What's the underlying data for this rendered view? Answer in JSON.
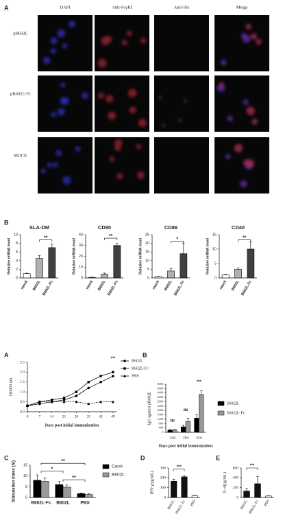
{
  "figure_a": {
    "columns": [
      "DAPI",
      "Anti-FcγRI",
      "Anti-His",
      "Merge"
    ],
    "rows": [
      "pB602L",
      "pB602L-Fc",
      "MOCK"
    ]
  },
  "panel_labels": [
    "A",
    "B",
    "A",
    "B",
    "C",
    "D",
    "E"
  ],
  "chart_data": [
    {
      "type": "bar",
      "title": "SLA-DM",
      "y_label": "Relative mRNA level",
      "categories": [
        "mock",
        "B602L",
        "B602L-Fc"
      ],
      "values": [
        1,
        4.5,
        7
      ],
      "errors": [
        0.1,
        0.7,
        0.8
      ],
      "colors": [
        "#ffffff",
        "#b0b0b0",
        "#404040"
      ],
      "ylim": [
        0,
        10
      ],
      "yticks": [
        0,
        2,
        4,
        6,
        8,
        10
      ],
      "annotations": [
        "**"
      ]
    },
    {
      "type": "bar",
      "title": "CD80",
      "y_label": "Relative mRNA level",
      "categories": [
        "mock",
        "B602L",
        "B602L-Fc"
      ],
      "values": [
        0.5,
        3.5,
        30
      ],
      "errors": [
        0.3,
        1,
        2
      ],
      "colors": [
        "#ffffff",
        "#b0b0b0",
        "#404040"
      ],
      "ylim": [
        0,
        40
      ],
      "yticks": [
        0,
        10,
        20,
        30,
        40
      ],
      "annotations": [
        "**"
      ]
    },
    {
      "type": "bar",
      "title": "CD86",
      "y_label": "Relative mRNA level",
      "categories": [
        "mock",
        "B602L",
        "B602L-Fc"
      ],
      "values": [
        0.8,
        4,
        14
      ],
      "errors": [
        0.2,
        1.5,
        6
      ],
      "colors": [
        "#ffffff",
        "#b0b0b0",
        "#404040"
      ],
      "ylim": [
        0,
        25
      ],
      "yticks": [
        0,
        5,
        10,
        15,
        20,
        25
      ],
      "annotations": [
        "*"
      ]
    },
    {
      "type": "bar",
      "title": "CD40",
      "y_label": "Relative mRNA level",
      "categories": [
        "mock",
        "B602L",
        "B602L-Fc"
      ],
      "values": [
        1,
        3,
        10
      ],
      "errors": [
        0.2,
        0.5,
        2.5
      ],
      "colors": [
        "#ffffff",
        "#b0b0b0",
        "#404040"
      ],
      "ylim": [
        0,
        15
      ],
      "yticks": [
        0,
        5,
        10,
        15
      ],
      "annotations": [
        "**"
      ]
    },
    {
      "type": "line",
      "y_label": "OD450 nm",
      "x_label": "Days post initial immunization",
      "x": [
        0,
        7,
        14,
        21,
        28,
        35,
        42,
        49
      ],
      "xlim": [
        0,
        51
      ],
      "xticks": [
        0,
        7,
        14,
        21,
        28,
        35,
        42,
        49
      ],
      "ylim": [
        0,
        2.5
      ],
      "yticks": [
        {
          "value": 0,
          "label": "0.0"
        },
        {
          "value": 0.5,
          "label": "0.5"
        },
        {
          "value": 1,
          "label": "1.0"
        },
        {
          "value": 1.5,
          "label": "1.5"
        },
        {
          "value": 2,
          "label": "2.0"
        },
        {
          "value": 2.5,
          "label": "2.5"
        }
      ],
      "series": [
        {
          "name": "B602L",
          "color": "#000000",
          "marker": "circle",
          "values": [
            0.3,
            0.4,
            0.5,
            0.6,
            0.8,
            1.2,
            1.5,
            1.8
          ]
        },
        {
          "name": "B602L-Fc",
          "color": "#000000",
          "marker": "square",
          "values": [
            0.3,
            0.5,
            0.6,
            0.7,
            1.0,
            1.5,
            1.8,
            2.0
          ]
        },
        {
          "name": "PBS",
          "color": "#000000",
          "marker": "triangle",
          "values": [
            0.3,
            0.5,
            0.5,
            0.5,
            0.5,
            0.4,
            0.5,
            0.5
          ]
        }
      ],
      "annotations": [
        "**"
      ]
    },
    {
      "type": "bar",
      "y_label": "IgG against pB602L",
      "x_label": "Days post initial immunization",
      "categories": [
        "14d",
        "28d",
        "42d"
      ],
      "axis_break": true,
      "series": [
        {
          "name": "B602L",
          "color": "#000000",
          "values": [
            200,
            500,
            1300
          ],
          "errors": [
            50,
            150,
            300
          ]
        },
        {
          "name": "B602L-Fc",
          "color": "#999999",
          "values": [
            200,
            1000,
            4000
          ],
          "errors": [
            50,
            300,
            1400
          ]
        }
      ],
      "ylim": [
        0,
        8000
      ],
      "yticks": [
        0,
        400,
        800,
        1200,
        1600,
        2000,
        2400,
        2800,
        3200,
        4400,
        6400,
        8000
      ],
      "annotations": [
        "ns",
        "ns",
        "**"
      ]
    },
    {
      "type": "bar",
      "y_label": "Stimulation index (SI)",
      "categories": [
        "B602L-Fc",
        "B602L",
        "PBS"
      ],
      "series": [
        {
          "name": "ConA",
          "color": "#000000",
          "values": [
            8,
            6,
            1.8
          ],
          "errors": [
            2.5,
            1.5,
            0.3
          ]
        },
        {
          "name": "B602L",
          "color": "#999999",
          "values": [
            7.5,
            4.8,
            1.4
          ],
          "errors": [
            1.5,
            1,
            0.3
          ]
        }
      ],
      "ylim": [
        0,
        15
      ],
      "yticks": [
        0,
        5,
        10,
        15
      ],
      "annotations": [
        "**",
        "*",
        "**"
      ]
    },
    {
      "type": "bar",
      "y_label": "IFN-γ(pg/mL)",
      "categories": [
        "B602L",
        "B602L-Fc",
        "PBS"
      ],
      "values": [
        165,
        210,
        20
      ],
      "errors": [
        20,
        10,
        3
      ],
      "colors": [
        "#111111",
        "#111111",
        "#ffffff"
      ],
      "ylim": [
        0,
        300
      ],
      "yticks": [
        0,
        100,
        200,
        300
      ],
      "annotations": [
        "**"
      ]
    },
    {
      "type": "bar",
      "y_label": "IL-4(pg/mL)",
      "categories": [
        "B602L",
        "B602L-Fc",
        "PBS"
      ],
      "values": [
        130,
        280,
        30
      ],
      "errors": [
        50,
        150,
        5
      ],
      "colors": [
        "#111111",
        "#111111",
        "#ffffff"
      ],
      "ylim": [
        0,
        600
      ],
      "yticks": [
        0,
        200,
        400,
        600
      ],
      "annotations": [
        "**"
      ]
    }
  ]
}
